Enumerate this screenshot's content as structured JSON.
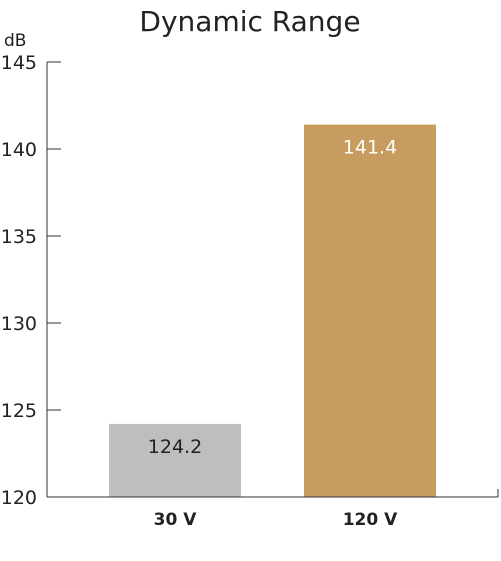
{
  "chart_data": {
    "type": "bar",
    "title": "Dynamic Range",
    "ylabel": "dB",
    "xlabel": "",
    "ylim": [
      120,
      145
    ],
    "yticks": [
      120,
      125,
      130,
      135,
      140,
      145
    ],
    "categories": [
      "30 V",
      "120 V"
    ],
    "values": [
      124.2,
      141.4
    ],
    "value_labels": [
      "124.2",
      "141.4"
    ],
    "bar_colors": [
      "#bdbebf",
      "#c89b5f"
    ],
    "label_colors": [
      "#222222",
      "#ffffff"
    ],
    "grid": false,
    "legend": "none"
  }
}
